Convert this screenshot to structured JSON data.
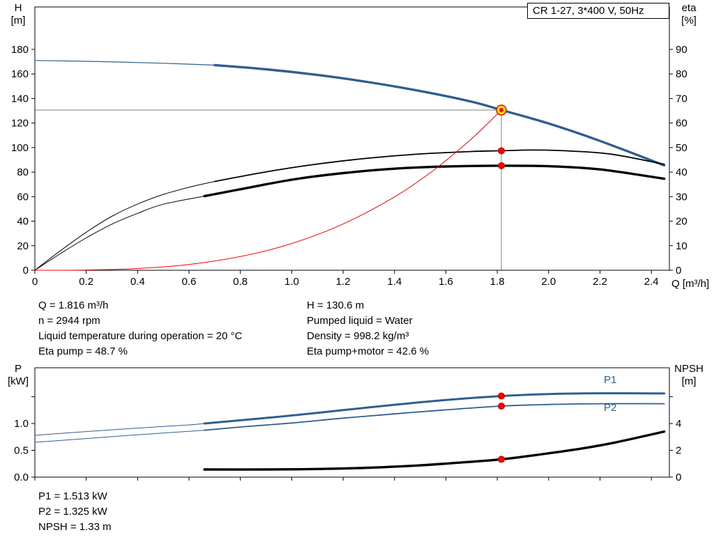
{
  "title_box": {
    "label": "CR 1-27, 3*400 V, 50Hz"
  },
  "colors": {
    "blue": "#2e5f8f",
    "black": "#000000",
    "red": "#ff0000",
    "gray": "#808080",
    "yellow": "#ffe600",
    "axis": "#000000"
  },
  "axis_labels": {
    "top_left_title": "H",
    "top_left_unit": "[m]",
    "top_right_title": "eta",
    "top_right_unit": "[%]",
    "x_label": "Q [m³/h]",
    "bottom_left_title": "P",
    "bottom_left_unit": "[kW]",
    "bottom_right_title": "NPSH",
    "bottom_right_unit": "[m]"
  },
  "curve_labels": {
    "p1": "P1",
    "p2": "P2"
  },
  "info_top_left": [
    "Q = 1.816 m³/h",
    "n = 2944 rpm",
    "Liquid temperature during operation = 20 °C",
    "Eta pump = 48.7 %"
  ],
  "info_top_right": [
    "H = 130.6 m",
    "Pumped liquid = Water",
    "Density = 998.2 kg/m³",
    "Eta pump+motor = 42.6 %"
  ],
  "info_bottom": [
    "P1 = 1.513 kW",
    "P2 = 1.325 kW",
    "NPSH = 1.33 m"
  ],
  "operating_point": {
    "q_m3h": 1.816,
    "h_m": 130.6,
    "n_rpm": 2944,
    "eta_pump_pct": 48.7,
    "eta_pump_motor_pct": 42.6,
    "p1_kw": 1.513,
    "p2_kw": 1.325,
    "npsh_m": 1.33,
    "liquid": "Water",
    "density_kg_m3": 998.2,
    "liquid_temp_c": 20
  },
  "chart_data": [
    {
      "id": "qh-eta-chart",
      "type": "line",
      "x_axis": {
        "label": "Q [m³/h]",
        "min": 0,
        "max": 2.47,
        "ticks": [
          0,
          0.2,
          0.4,
          0.6,
          0.8,
          1.0,
          1.2,
          1.4,
          1.6,
          1.8,
          2.0,
          2.2,
          2.4
        ],
        "tick_labels": [
          "0",
          "0.2",
          "0.4",
          "0.6",
          "0.8",
          "1.0",
          "1.2",
          "1.4",
          "1.6",
          "1.8",
          "2.0",
          "2.2",
          "2.4"
        ]
      },
      "y_left": {
        "label": "H [m]",
        "min": 0,
        "max": 214.6,
        "ticks": [
          0,
          20,
          40,
          60,
          80,
          100,
          120,
          140,
          160,
          180
        ],
        "tick_labels": [
          "0",
          "20",
          "40",
          "60",
          "80",
          "100",
          "120",
          "140",
          "160",
          "180"
        ]
      },
      "y_right": {
        "label": "eta [%]",
        "min": 0,
        "max": 107.3,
        "ticks": [
          0,
          10,
          20,
          30,
          40,
          50,
          60,
          70,
          80,
          90
        ],
        "tick_labels": [
          "0",
          "10",
          "20",
          "30",
          "40",
          "50",
          "60",
          "70",
          "80",
          "90"
        ]
      },
      "series": [
        {
          "name": "head-curve-extrapolated",
          "axis": "left",
          "color": "blue",
          "width": 1.2,
          "points": [
            [
              0,
              171
            ],
            [
              0.25,
              170.1
            ],
            [
              0.5,
              168.7
            ],
            [
              0.7,
              167.2
            ]
          ]
        },
        {
          "name": "head-curve",
          "axis": "left",
          "color": "blue",
          "width": 3.4,
          "points": [
            [
              0.7,
              167.2
            ],
            [
              0.9,
              163.8
            ],
            [
              1.1,
              159.2
            ],
            [
              1.3,
              153.3
            ],
            [
              1.5,
              146.1
            ],
            [
              1.7,
              137.4
            ],
            [
              1.816,
              130.6
            ],
            [
              2.0,
              119.6
            ],
            [
              2.2,
              105.4
            ],
            [
              2.45,
              85.5
            ]
          ]
        },
        {
          "name": "eta-pump-extrapolated",
          "axis": "right",
          "color": "black",
          "width": 1,
          "points": [
            [
              0,
              0
            ],
            [
              0.1,
              8
            ],
            [
              0.2,
              15.5
            ],
            [
              0.3,
              22
            ],
            [
              0.4,
              27
            ],
            [
              0.5,
              30.9
            ],
            [
              0.6,
              33.8
            ],
            [
              0.7,
              36.2
            ]
          ]
        },
        {
          "name": "eta-pump",
          "axis": "right",
          "color": "black",
          "width": 1.8,
          "points": [
            [
              0.7,
              36.2
            ],
            [
              0.9,
              40.1
            ],
            [
              1.1,
              43.3
            ],
            [
              1.3,
              45.7
            ],
            [
              1.5,
              47.4
            ],
            [
              1.7,
              48.4
            ],
            [
              1.816,
              48.7
            ],
            [
              1.95,
              49.0
            ],
            [
              2.1,
              48.5
            ],
            [
              2.25,
              47.2
            ],
            [
              2.45,
              43.2
            ]
          ]
        },
        {
          "name": "eta-pump-motor-extrapolated",
          "axis": "right",
          "color": "black",
          "width": 1,
          "points": [
            [
              0,
              0
            ],
            [
              0.1,
              6.8
            ],
            [
              0.2,
              13.2
            ],
            [
              0.3,
              18.8
            ],
            [
              0.4,
              23.2
            ],
            [
              0.5,
              26.9
            ],
            [
              0.66,
              30.2
            ]
          ]
        },
        {
          "name": "eta-pump-motor",
          "axis": "right",
          "color": "black",
          "width": 3.4,
          "points": [
            [
              0.66,
              30.2
            ],
            [
              0.8,
              33.0
            ],
            [
              1.0,
              36.9
            ],
            [
              1.2,
              39.6
            ],
            [
              1.4,
              41.4
            ],
            [
              1.6,
              42.3
            ],
            [
              1.816,
              42.6
            ],
            [
              2.0,
              42.4
            ],
            [
              2.2,
              41.1
            ],
            [
              2.45,
              37.3
            ]
          ]
        },
        {
          "name": "system-curve",
          "axis": "left",
          "color": "red",
          "width": 1,
          "points": [
            [
              0,
              0
            ],
            [
              0.2,
              0.2
            ],
            [
              0.4,
              1.4
            ],
            [
              0.6,
              4.7
            ],
            [
              0.8,
              11.2
            ],
            [
              1.0,
              21.8
            ],
            [
              1.2,
              37.7
            ],
            [
              1.4,
              59.8
            ],
            [
              1.55,
              81.2
            ],
            [
              1.7,
              107.2
            ],
            [
              1.816,
              130.6
            ]
          ]
        }
      ],
      "crosshair": {
        "q": 1.816,
        "value": 130.6,
        "axis": "left"
      },
      "markers": [
        {
          "name": "eta-pump-point",
          "axis": "right",
          "q": 1.816,
          "value": 48.7,
          "style": "red-dot"
        },
        {
          "name": "eta-pump-motor-point",
          "axis": "right",
          "q": 1.816,
          "value": 42.6,
          "style": "red-dot"
        },
        {
          "name": "duty-point",
          "axis": "left",
          "q": 1.816,
          "value": 130.6,
          "style": "duty-point"
        }
      ]
    },
    {
      "id": "power-npsh-chart",
      "type": "line",
      "x_axis": {
        "label": "",
        "min": 0,
        "max": 2.47,
        "ticks": [
          0,
          0.2,
          0.4,
          0.6,
          0.8,
          1.0,
          1.2,
          1.4,
          1.6,
          1.8,
          2.0,
          2.2,
          2.4
        ],
        "tick_labels": []
      },
      "y_left": {
        "label": "P [kW]",
        "min": 0,
        "max": 2.04,
        "ticks": [
          0,
          0.5,
          1.0,
          1.5
        ],
        "tick_labels": [
          "0.0",
          "0.5",
          "1.0",
          ""
        ]
      },
      "y_right": {
        "label": "NPSH [m]",
        "min": 0,
        "max": 8.16,
        "ticks": [
          0,
          2,
          4,
          6
        ],
        "tick_labels": [
          "0",
          "2",
          "4",
          ""
        ]
      },
      "series": [
        {
          "name": "p1-curve-extrapolated",
          "axis": "left",
          "color": "blue",
          "width": 1,
          "points": [
            [
              0,
              0.78
            ],
            [
              0.2,
              0.85
            ],
            [
              0.4,
              0.915
            ],
            [
              0.6,
              0.975
            ],
            [
              0.66,
              1.0
            ]
          ]
        },
        {
          "name": "p1-curve",
          "axis": "left",
          "color": "blue",
          "width": 3,
          "points": [
            [
              0.66,
              1.0
            ],
            [
              0.8,
              1.06
            ],
            [
              1.0,
              1.15
            ],
            [
              1.2,
              1.25
            ],
            [
              1.4,
              1.35
            ],
            [
              1.6,
              1.44
            ],
            [
              1.816,
              1.513
            ],
            [
              2.0,
              1.55
            ],
            [
              2.2,
              1.565
            ],
            [
              2.45,
              1.56
            ]
          ]
        },
        {
          "name": "p2-curve-extrapolated",
          "axis": "left",
          "color": "blue",
          "width": 1,
          "points": [
            [
              0,
              0.65
            ],
            [
              0.2,
              0.72
            ],
            [
              0.4,
              0.79
            ],
            [
              0.6,
              0.855
            ],
            [
              0.66,
              0.875
            ]
          ]
        },
        {
          "name": "p2-curve",
          "axis": "left",
          "color": "blue",
          "width": 1.8,
          "points": [
            [
              0.66,
              0.875
            ],
            [
              0.8,
              0.935
            ],
            [
              1.0,
              1.01
            ],
            [
              1.2,
              1.1
            ],
            [
              1.4,
              1.18
            ],
            [
              1.6,
              1.255
            ],
            [
              1.816,
              1.325
            ],
            [
              2.0,
              1.355
            ],
            [
              2.2,
              1.37
            ],
            [
              2.45,
              1.37
            ]
          ]
        },
        {
          "name": "npsh-curve",
          "axis": "right",
          "color": "black",
          "width": 3.4,
          "points": [
            [
              0.66,
              0.57
            ],
            [
              0.9,
              0.57
            ],
            [
              1.1,
              0.61
            ],
            [
              1.3,
              0.7
            ],
            [
              1.5,
              0.88
            ],
            [
              1.65,
              1.08
            ],
            [
              1.816,
              1.33
            ],
            [
              1.95,
              1.65
            ],
            [
              2.1,
              2.05
            ],
            [
              2.25,
              2.55
            ],
            [
              2.45,
              3.4
            ]
          ]
        }
      ],
      "markers": [
        {
          "name": "p1-point",
          "axis": "left",
          "q": 1.816,
          "value": 1.513,
          "style": "red-dot"
        },
        {
          "name": "p2-point",
          "axis": "left",
          "q": 1.816,
          "value": 1.325,
          "style": "red-dot"
        },
        {
          "name": "npsh-point",
          "axis": "right",
          "q": 1.816,
          "value": 1.33,
          "style": "red-dot"
        }
      ]
    }
  ]
}
